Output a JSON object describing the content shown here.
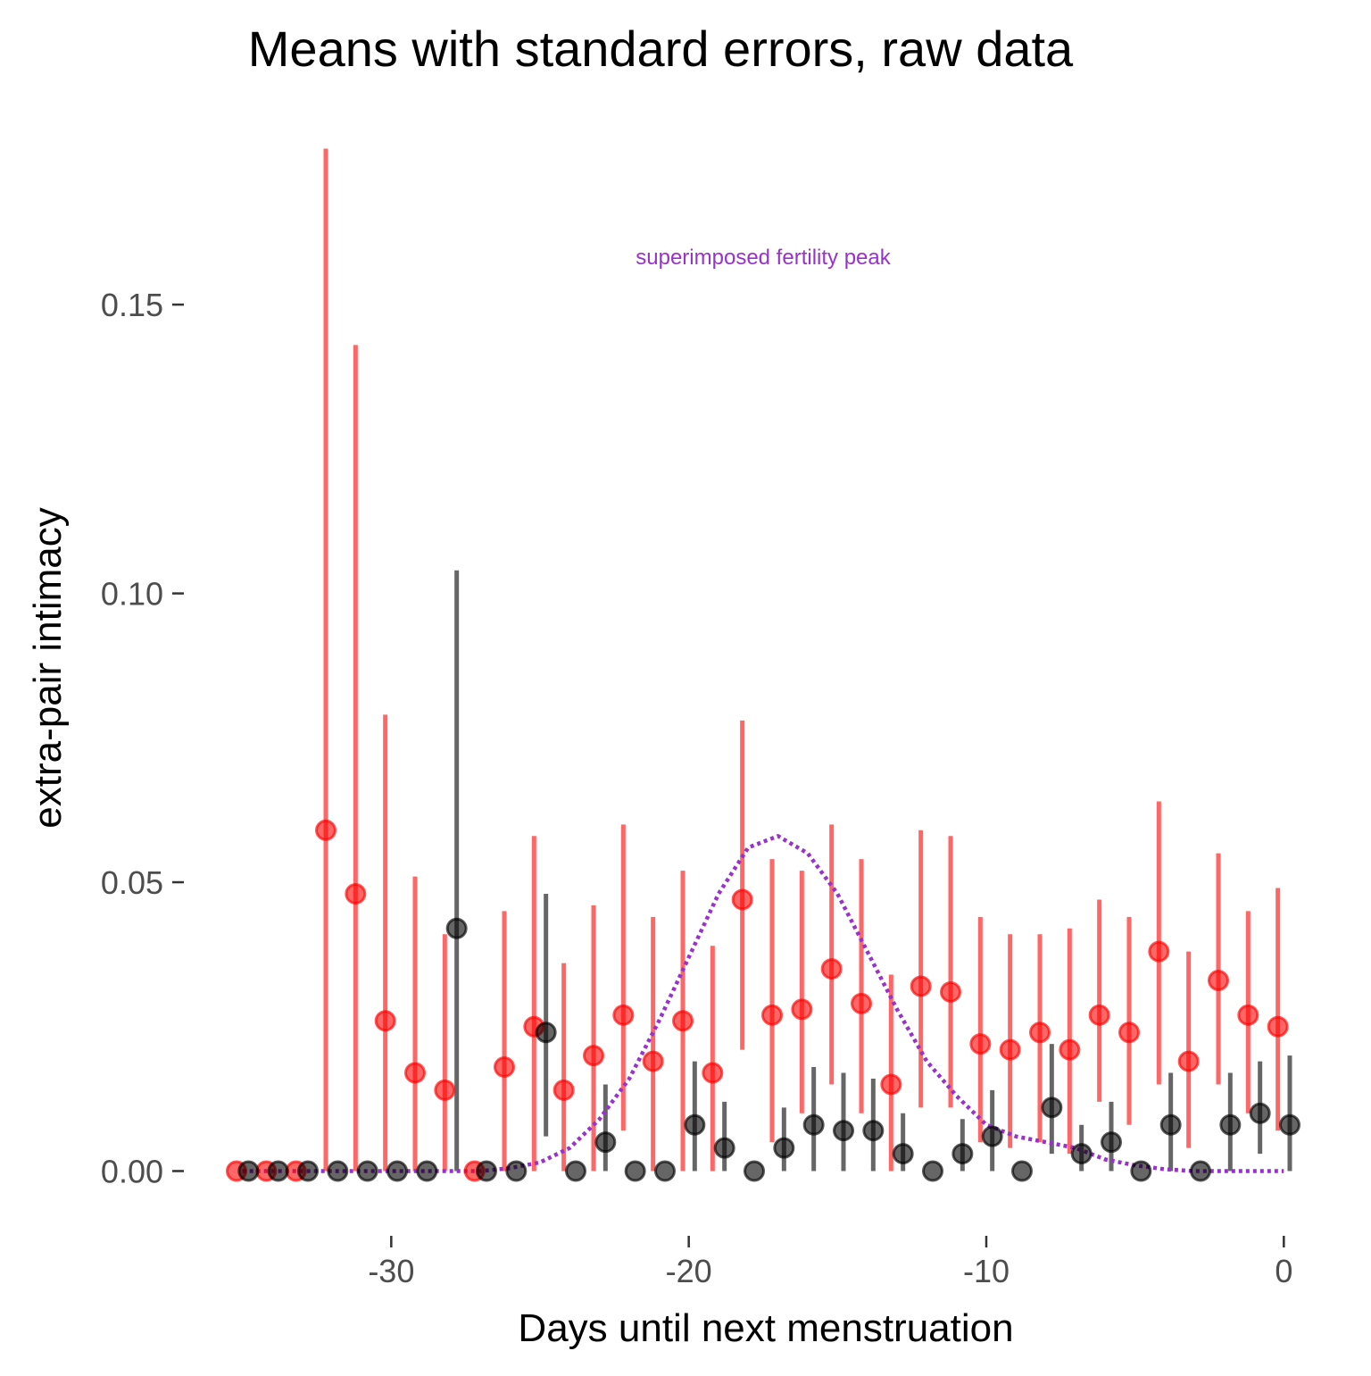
{
  "chart_data": {
    "type": "scatter",
    "title": "Means with standard errors, raw data",
    "xlabel": "Days until next menstruation",
    "ylabel": "extra-pair intimacy",
    "xlim": [
      -35.5,
      0.5
    ],
    "ylim": [
      -0.0075,
      0.178
    ],
    "x_ticks": [
      -30,
      -20,
      -10,
      0
    ],
    "y_ticks": [
      0.0,
      0.05,
      0.1,
      0.15
    ],
    "x_tick_labels": [
      "-30",
      "-20",
      "-10",
      "0"
    ],
    "y_tick_labels": [
      "0.00",
      "0.05",
      "0.10",
      "0.15"
    ],
    "grid": false,
    "colors": {
      "series_1": "#ff0000",
      "series_2": "#000000",
      "fertility_curve": "#9932cc",
      "axis_text": "#4d4d4d"
    },
    "annotation": {
      "text": "superimposed fertility peak",
      "x": -17.5,
      "y": 0.157,
      "color": "#9932cc"
    },
    "series": [
      {
        "color": "#ff0000",
        "points": [
          {
            "x": -35.2,
            "y": 0.0,
            "lo": 0.0,
            "hi": 0.0
          },
          {
            "x": -34.2,
            "y": 0.0,
            "lo": 0.0,
            "hi": 0.0
          },
          {
            "x": -33.2,
            "y": 0.0,
            "lo": 0.0,
            "hi": 0.0
          },
          {
            "x": -32.2,
            "y": 0.059,
            "lo": 0.0,
            "hi": 0.177
          },
          {
            "x": -31.2,
            "y": 0.048,
            "lo": 0.0,
            "hi": 0.143
          },
          {
            "x": -30.2,
            "y": 0.026,
            "lo": 0.0,
            "hi": 0.079
          },
          {
            "x": -29.2,
            "y": 0.017,
            "lo": 0.0,
            "hi": 0.051
          },
          {
            "x": -28.2,
            "y": 0.014,
            "lo": 0.0,
            "hi": 0.041
          },
          {
            "x": -27.2,
            "y": 0.0,
            "lo": 0.0,
            "hi": 0.0
          },
          {
            "x": -26.2,
            "y": 0.018,
            "lo": 0.0,
            "hi": 0.045
          },
          {
            "x": -25.2,
            "y": 0.025,
            "lo": 0.0,
            "hi": 0.058
          },
          {
            "x": -24.2,
            "y": 0.014,
            "lo": 0.0,
            "hi": 0.036
          },
          {
            "x": -23.2,
            "y": 0.02,
            "lo": 0.0,
            "hi": 0.046
          },
          {
            "x": -22.2,
            "y": 0.027,
            "lo": 0.007,
            "hi": 0.06
          },
          {
            "x": -21.2,
            "y": 0.019,
            "lo": 0.0,
            "hi": 0.044
          },
          {
            "x": -20.2,
            "y": 0.026,
            "lo": 0.0,
            "hi": 0.052
          },
          {
            "x": -19.2,
            "y": 0.017,
            "lo": 0.0,
            "hi": 0.039
          },
          {
            "x": -18.2,
            "y": 0.047,
            "lo": 0.021,
            "hi": 0.078
          },
          {
            "x": -17.2,
            "y": 0.027,
            "lo": 0.005,
            "hi": 0.054
          },
          {
            "x": -16.2,
            "y": 0.028,
            "lo": 0.01,
            "hi": 0.052
          },
          {
            "x": -15.2,
            "y": 0.035,
            "lo": 0.015,
            "hi": 0.06
          },
          {
            "x": -14.2,
            "y": 0.029,
            "lo": 0.01,
            "hi": 0.054
          },
          {
            "x": -13.2,
            "y": 0.015,
            "lo": 0.0,
            "hi": 0.034
          },
          {
            "x": -12.2,
            "y": 0.032,
            "lo": 0.011,
            "hi": 0.059
          },
          {
            "x": -11.2,
            "y": 0.031,
            "lo": 0.011,
            "hi": 0.058
          },
          {
            "x": -10.2,
            "y": 0.022,
            "lo": 0.005,
            "hi": 0.044
          },
          {
            "x": -9.2,
            "y": 0.021,
            "lo": 0.004,
            "hi": 0.041
          },
          {
            "x": -8.2,
            "y": 0.024,
            "lo": 0.005,
            "hi": 0.041
          },
          {
            "x": -7.2,
            "y": 0.021,
            "lo": 0.003,
            "hi": 0.042
          },
          {
            "x": -6.2,
            "y": 0.027,
            "lo": 0.012,
            "hi": 0.047
          },
          {
            "x": -5.2,
            "y": 0.024,
            "lo": 0.008,
            "hi": 0.044
          },
          {
            "x": -4.2,
            "y": 0.038,
            "lo": 0.015,
            "hi": 0.064
          },
          {
            "x": -3.2,
            "y": 0.019,
            "lo": 0.004,
            "hi": 0.038
          },
          {
            "x": -2.2,
            "y": 0.033,
            "lo": 0.015,
            "hi": 0.055
          },
          {
            "x": -1.2,
            "y": 0.027,
            "lo": 0.01,
            "hi": 0.045
          },
          {
            "x": -0.2,
            "y": 0.025,
            "lo": 0.007,
            "hi": 0.049
          }
        ]
      },
      {
        "color": "#000000",
        "points": [
          {
            "x": -34.8,
            "y": 0.0,
            "lo": 0.0,
            "hi": 0.0
          },
          {
            "x": -33.8,
            "y": 0.0,
            "lo": 0.0,
            "hi": 0.0
          },
          {
            "x": -32.8,
            "y": 0.0,
            "lo": 0.0,
            "hi": 0.0
          },
          {
            "x": -31.8,
            "y": 0.0,
            "lo": 0.0,
            "hi": 0.0
          },
          {
            "x": -30.8,
            "y": 0.0,
            "lo": 0.0,
            "hi": 0.0
          },
          {
            "x": -29.8,
            "y": 0.0,
            "lo": 0.0,
            "hi": 0.0
          },
          {
            "x": -28.8,
            "y": 0.0,
            "lo": 0.0,
            "hi": 0.0
          },
          {
            "x": -27.8,
            "y": 0.042,
            "lo": 0.0,
            "hi": 0.104
          },
          {
            "x": -26.8,
            "y": 0.0,
            "lo": 0.0,
            "hi": 0.0
          },
          {
            "x": -25.8,
            "y": 0.0,
            "lo": 0.0,
            "hi": 0.0
          },
          {
            "x": -24.8,
            "y": 0.024,
            "lo": 0.006,
            "hi": 0.048
          },
          {
            "x": -23.8,
            "y": 0.0,
            "lo": 0.0,
            "hi": 0.0
          },
          {
            "x": -22.8,
            "y": 0.005,
            "lo": 0.0,
            "hi": 0.015
          },
          {
            "x": -21.8,
            "y": 0.0,
            "lo": 0.0,
            "hi": 0.0
          },
          {
            "x": -20.8,
            "y": 0.0,
            "lo": 0.0,
            "hi": 0.0
          },
          {
            "x": -19.8,
            "y": 0.008,
            "lo": 0.0,
            "hi": 0.019
          },
          {
            "x": -18.8,
            "y": 0.004,
            "lo": 0.0,
            "hi": 0.012
          },
          {
            "x": -17.8,
            "y": 0.0,
            "lo": 0.0,
            "hi": 0.0
          },
          {
            "x": -16.8,
            "y": 0.004,
            "lo": 0.0,
            "hi": 0.011
          },
          {
            "x": -15.8,
            "y": 0.008,
            "lo": 0.0,
            "hi": 0.018
          },
          {
            "x": -14.8,
            "y": 0.007,
            "lo": 0.0,
            "hi": 0.017
          },
          {
            "x": -13.8,
            "y": 0.007,
            "lo": 0.0,
            "hi": 0.016
          },
          {
            "x": -12.8,
            "y": 0.003,
            "lo": 0.0,
            "hi": 0.01
          },
          {
            "x": -11.8,
            "y": 0.0,
            "lo": 0.0,
            "hi": 0.0
          },
          {
            "x": -10.8,
            "y": 0.003,
            "lo": 0.0,
            "hi": 0.009
          },
          {
            "x": -9.8,
            "y": 0.006,
            "lo": 0.0,
            "hi": 0.014
          },
          {
            "x": -8.8,
            "y": 0.0,
            "lo": 0.0,
            "hi": 0.0
          },
          {
            "x": -7.8,
            "y": 0.011,
            "lo": 0.003,
            "hi": 0.022
          },
          {
            "x": -6.8,
            "y": 0.003,
            "lo": 0.0,
            "hi": 0.008
          },
          {
            "x": -5.8,
            "y": 0.005,
            "lo": 0.0,
            "hi": 0.012
          },
          {
            "x": -4.8,
            "y": 0.0,
            "lo": 0.0,
            "hi": 0.0
          },
          {
            "x": -3.8,
            "y": 0.008,
            "lo": 0.0,
            "hi": 0.017
          },
          {
            "x": -2.8,
            "y": 0.0,
            "lo": 0.0,
            "hi": 0.0
          },
          {
            "x": -1.8,
            "y": 0.008,
            "lo": 0.0,
            "hi": 0.017
          },
          {
            "x": -0.8,
            "y": 0.01,
            "lo": 0.003,
            "hi": 0.019
          },
          {
            "x": 0.2,
            "y": 0.008,
            "lo": 0.0,
            "hi": 0.02
          }
        ]
      }
    ],
    "fertility_curve": {
      "x": [
        -35,
        -30,
        -28,
        -27,
        -26,
        -25,
        -24,
        -23,
        -22,
        -21,
        -20,
        -19,
        -18,
        -17,
        -16,
        -15,
        -14,
        -13,
        -12,
        -11,
        -10,
        -9,
        -8,
        -7,
        -6,
        -5,
        -4,
        -3,
        -2,
        -1,
        0
      ],
      "y": [
        0,
        0,
        0,
        0,
        0.0005,
        0.0015,
        0.004,
        0.009,
        0.016,
        0.026,
        0.037,
        0.048,
        0.056,
        0.058,
        0.055,
        0.048,
        0.038,
        0.028,
        0.019,
        0.013,
        0.008,
        0.006,
        0.005,
        0.004,
        0.002,
        0.001,
        0.0003,
        0,
        0,
        0,
        0
      ]
    }
  }
}
